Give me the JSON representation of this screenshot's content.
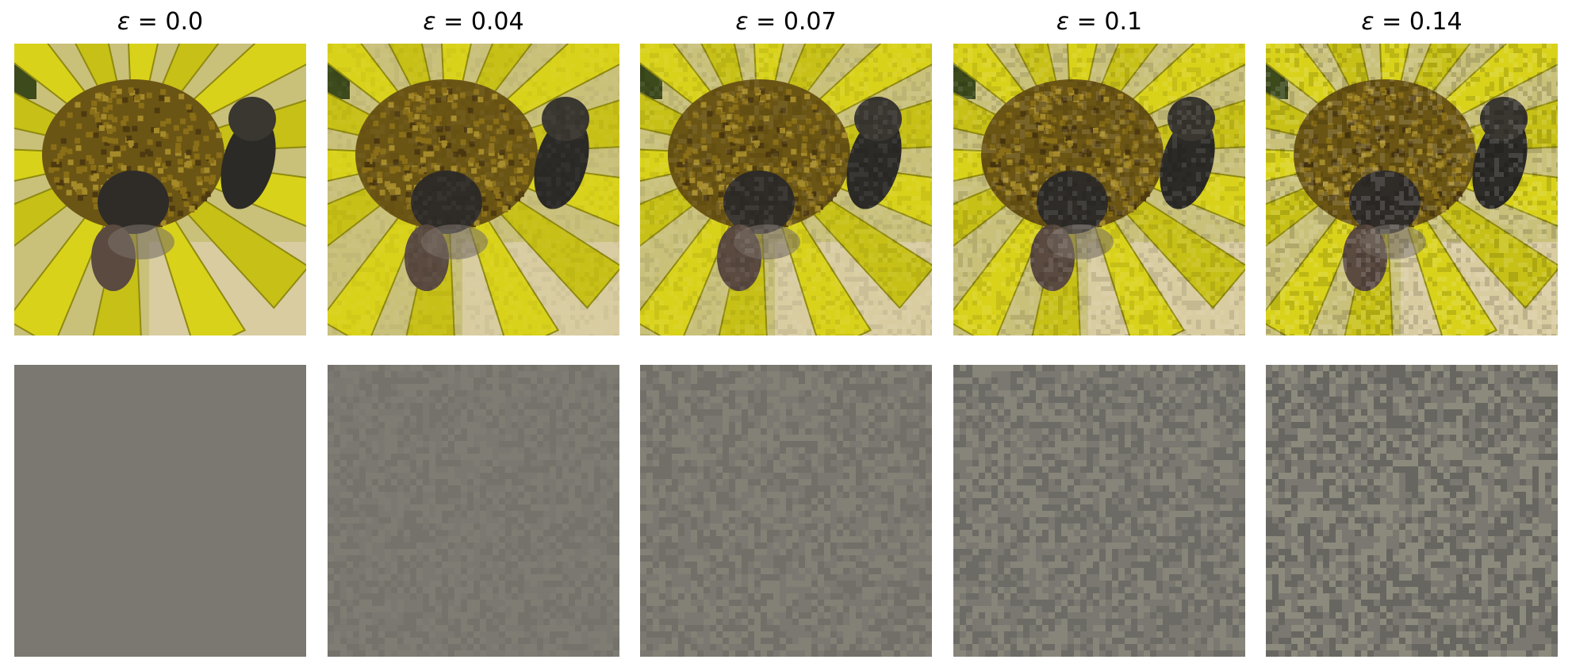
{
  "figure": {
    "symbol": "ε",
    "operator": " = ",
    "panels": [
      {
        "epsilon_label": "0.0",
        "epsilon": 0.0
      },
      {
        "epsilon_label": "0.04",
        "epsilon": 0.04
      },
      {
        "epsilon_label": "0.07",
        "epsilon": 0.07
      },
      {
        "epsilon_label": "0.1",
        "epsilon": 0.1
      },
      {
        "epsilon_label": "0.14",
        "epsilon": 0.14
      }
    ]
  },
  "colors": {
    "background": "#ffffff",
    "noise_base": "#7a7870",
    "noise_light": "#8c8a7c",
    "noise_dark": "#686660",
    "petal_yellow": "#d9d21a",
    "petal_shadow": "#8f8a10",
    "flower_center": "#6b5514",
    "bee_body": "#2b2a26"
  }
}
